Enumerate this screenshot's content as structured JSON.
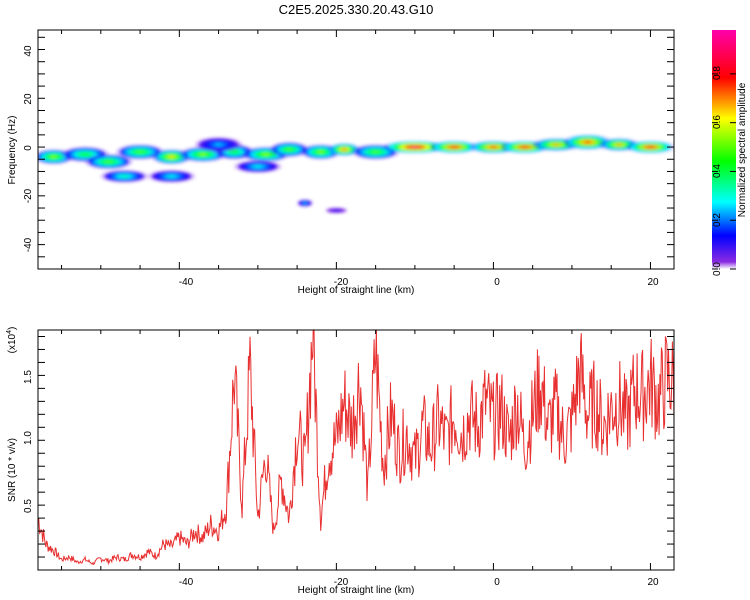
{
  "title": "C2E5.2025.330.20.43.G10",
  "chart_data": [
    {
      "type": "heatmap",
      "title": "C2E5.2025.330.20.43.G10",
      "xlabel": "Height of straight line (km)",
      "ylabel": "Frequency (Hz)",
      "xlim": [
        -58,
        23
      ],
      "ylim": [
        -50,
        48
      ],
      "xticks": [
        -40,
        -20,
        0,
        20
      ],
      "yticks": [
        40,
        20,
        0,
        -20,
        -40
      ],
      "xtick_labels": [
        "-40",
        "-20",
        "0",
        "20"
      ],
      "ytick_labels": [
        "40",
        "20",
        "0",
        "-20",
        "-40"
      ],
      "colorbar": {
        "label": "Normalized spectral amplitude",
        "range": [
          0,
          0.98
        ],
        "ticks": [
          0.0,
          0.2,
          0.4,
          0.6,
          0.8
        ],
        "tick_labels": [
          "0.0",
          "0.2",
          "0.4",
          "0.6",
          "0.8"
        ],
        "colors": [
          "#ffffff",
          "#6a00ff",
          "#0000ff",
          "#00ffff",
          "#00ff00",
          "#ffff00",
          "#ff0000",
          "#ff00aa"
        ]
      },
      "blobs": [
        {
          "x": -56,
          "f": -4,
          "w": 2.5,
          "h": 3,
          "a": 0.55
        },
        {
          "x": -52,
          "f": -3,
          "w": 3,
          "h": 3,
          "a": 0.45
        },
        {
          "x": -49,
          "f": -6,
          "w": 3,
          "h": 3,
          "a": 0.5
        },
        {
          "x": -45,
          "f": -2,
          "w": 3,
          "h": 3,
          "a": 0.5
        },
        {
          "x": -41,
          "f": -4,
          "w": 2.5,
          "h": 3,
          "a": 0.65
        },
        {
          "x": -37,
          "f": -3,
          "w": 3,
          "h": 3,
          "a": 0.55
        },
        {
          "x": -33,
          "f": -2,
          "w": 2.5,
          "h": 3,
          "a": 0.45
        },
        {
          "x": -29,
          "f": -3,
          "w": 3,
          "h": 3,
          "a": 0.55
        },
        {
          "x": -26,
          "f": -1,
          "w": 2.5,
          "h": 3,
          "a": 0.5
        },
        {
          "x": -22,
          "f": -2,
          "w": 2.5,
          "h": 3,
          "a": 0.55
        },
        {
          "x": -19,
          "f": -1,
          "w": 2,
          "h": 2.5,
          "a": 0.75
        },
        {
          "x": -15,
          "f": -2,
          "w": 3,
          "h": 3,
          "a": 0.5
        },
        {
          "x": -10,
          "f": 0,
          "w": 4,
          "h": 2.5,
          "a": 0.95
        },
        {
          "x": -5,
          "f": 0,
          "w": 3,
          "h": 2.5,
          "a": 0.85
        },
        {
          "x": 0,
          "f": 0,
          "w": 3,
          "h": 2.5,
          "a": 0.8
        },
        {
          "x": 4,
          "f": 0,
          "w": 3,
          "h": 2.5,
          "a": 0.85
        },
        {
          "x": 8,
          "f": 1,
          "w": 3,
          "h": 2.5,
          "a": 0.7
        },
        {
          "x": 12,
          "f": 2,
          "w": 3,
          "h": 3,
          "a": 0.8
        },
        {
          "x": 16,
          "f": 1,
          "w": 2.5,
          "h": 2.5,
          "a": 0.7
        },
        {
          "x": 20,
          "f": 0,
          "w": 3,
          "h": 2.5,
          "a": 0.85
        },
        {
          "x": -47,
          "f": -12,
          "w": 3,
          "h": 2.5,
          "a": 0.35
        },
        {
          "x": -41,
          "f": -12,
          "w": 3,
          "h": 2.5,
          "a": 0.3
        },
        {
          "x": -30,
          "f": -8,
          "w": 3,
          "h": 2.5,
          "a": 0.3
        },
        {
          "x": -35,
          "f": 1,
          "w": 3,
          "h": 3,
          "a": 0.25
        },
        {
          "x": -24,
          "f": -23,
          "w": 1,
          "h": 1.5,
          "a": 0.25
        },
        {
          "x": -20,
          "f": -26,
          "w": 1.5,
          "h": 1.2,
          "a": 0.1
        }
      ]
    },
    {
      "type": "line",
      "xlabel": "Height of straight line (km)",
      "ylabel": "SNR (10 * v/v)",
      "y_scale_label": "(x10",
      "y_scale_exp": "4",
      "xlim": [
        -58,
        23
      ],
      "ylim": [
        0,
        18500
      ],
      "xticks": [
        -40,
        -20,
        0,
        20
      ],
      "yticks": [
        5000,
        10000,
        15000
      ],
      "xtick_labels": [
        "-40",
        "-20",
        "0",
        "20"
      ],
      "ytick_labels": [
        "0.5",
        "1.0",
        "1.5"
      ],
      "color": "#e83030",
      "series": [
        {
          "name": "SNR",
          "x": [
            -58,
            -57,
            -56,
            -55,
            -54,
            -53,
            -52,
            -51,
            -50,
            -49,
            -48,
            -47,
            -46,
            -45,
            -44,
            -43,
            -42,
            -41,
            -40,
            -39,
            -38,
            -37,
            -36,
            -35,
            -34,
            -33,
            -32,
            -31,
            -30,
            -29,
            -28,
            -27,
            -26,
            -25,
            -24,
            -23,
            -22,
            -21,
            -20,
            -19,
            -18,
            -17,
            -16,
            -15,
            -14,
            -13,
            -12,
            -11,
            -10,
            -9,
            -8,
            -7,
            -6,
            -5,
            -4,
            -3,
            -2,
            -1,
            0,
            1,
            2,
            3,
            4,
            5,
            6,
            7,
            8,
            9,
            10,
            11,
            12,
            13,
            14,
            15,
            16,
            17,
            18,
            19,
            20,
            21,
            22,
            23
          ],
          "values": [
            4000,
            2000,
            1500,
            800,
            1000,
            600,
            800,
            500,
            900,
            700,
            1000,
            800,
            1200,
            1000,
            1400,
            1100,
            2000,
            1800,
            2500,
            2000,
            3000,
            2500,
            3500,
            3000,
            5000,
            15000,
            5000,
            15500,
            4000,
            9000,
            3000,
            7000,
            4000,
            11000,
            8000,
            18500,
            4000,
            9000,
            10000,
            13000,
            11000,
            15000,
            6000,
            17000,
            8000,
            12000,
            9000,
            10500,
            8500,
            11000,
            9500,
            11500,
            10000,
            12000,
            10500,
            12000,
            11000,
            13000,
            11500,
            12500,
            10000,
            13000,
            9500,
            12000,
            14500,
            11000,
            12500,
            10000,
            11500,
            15500,
            12000,
            13000,
            11000,
            12500,
            13000,
            11500,
            14000,
            13500,
            14500,
            13000,
            14800,
            14500
          ]
        }
      ]
    }
  ]
}
